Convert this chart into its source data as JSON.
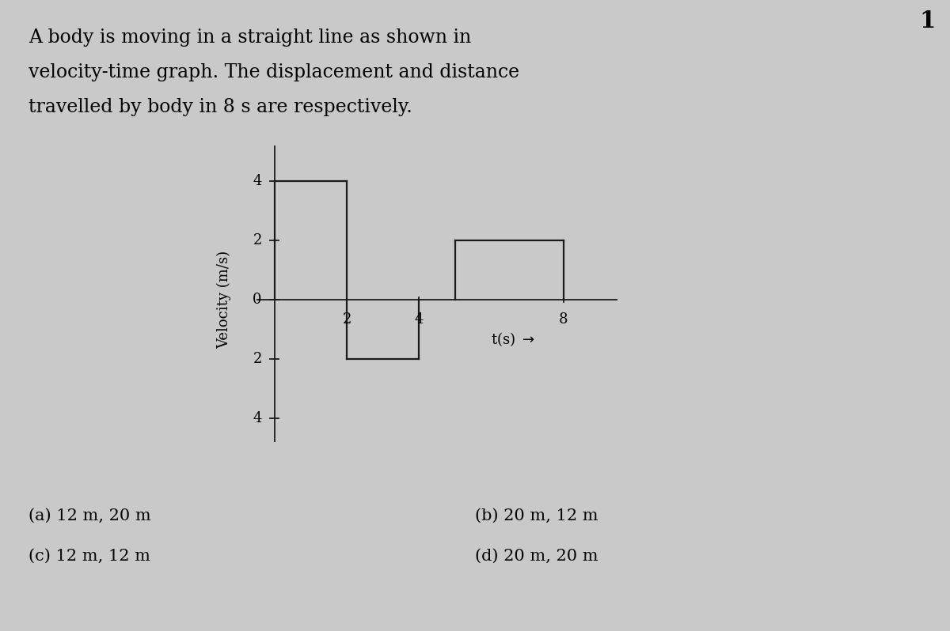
{
  "title_line1": "A body is moving in a straight line as shown in",
  "title_line2": "velocity-time graph. The displacement and distance",
  "title_line3": "travelled by body in 8 s are respectively.",
  "question_number": "1",
  "graph_segments": [
    {
      "t_start": 0,
      "t_end": 2,
      "v": 4
    },
    {
      "t_start": 2,
      "t_end": 4,
      "v": -2
    },
    {
      "t_start": 5,
      "t_end": 8,
      "v": 2
    }
  ],
  "ylabel": "Velocity (m/s)",
  "xlabel": "t(s)",
  "xlim": [
    -0.5,
    9.5
  ],
  "ylim": [
    -4.8,
    5.2
  ],
  "xticks": [
    2,
    4,
    8
  ],
  "yticks_pos": [
    4,
    2,
    0,
    2,
    4
  ],
  "yticks_vals": [
    4,
    2,
    0,
    -2,
    -4
  ],
  "options_left": [
    "(a) 12 m, 20 m",
    "(c) 12 m, 12 m"
  ],
  "options_right": [
    "(b) 20 m, 12 m",
    "(d) 20 m, 20 m"
  ],
  "bg_color": "#c9c9c9",
  "line_color": "#1a1a1a",
  "title_fontsize": 17,
  "axis_label_fontsize": 13,
  "tick_fontsize": 13,
  "option_fontsize": 15
}
